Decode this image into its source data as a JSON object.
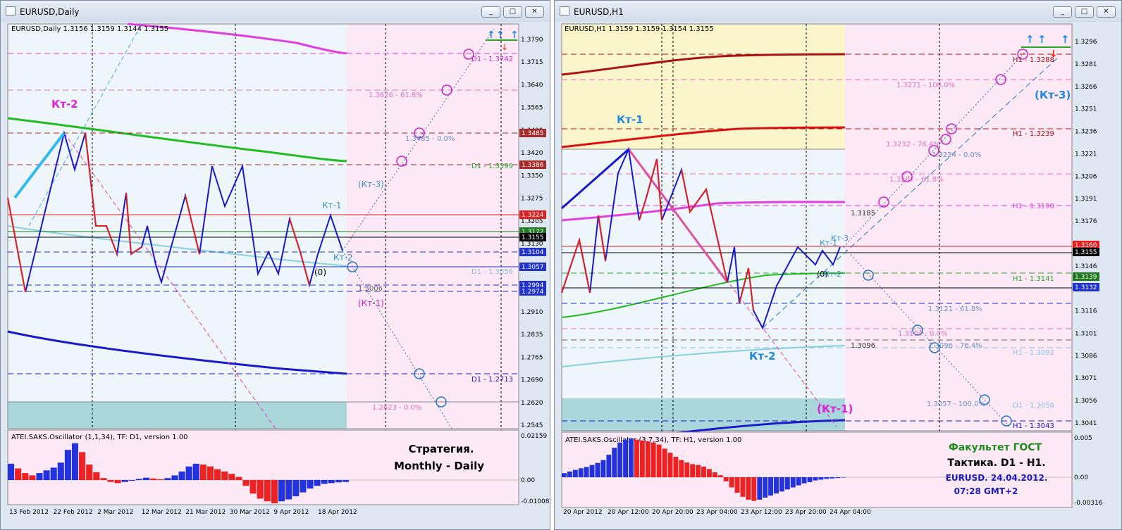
{
  "left": {
    "window_title": "EURUSD,Daily",
    "chart_header": "EURUSD,Daily  1.3156 1.3159 1.3144 1.3155",
    "price_axis": [
      "1.3790",
      "1.3715",
      "1.3640",
      "1.3565",
      "1.3490",
      "1.3420",
      "1.3350",
      "1.3275",
      "1.3205",
      "1.3130",
      "1.3055",
      "1.2985",
      "1.2910",
      "1.2835",
      "1.2765",
      "1.2690",
      "1.2620",
      "1.2545"
    ],
    "price_tags": [
      {
        "label": "1.3485",
        "color": "#a52a2a"
      },
      {
        "label": "1.3386",
        "color": "#a52a2a"
      },
      {
        "label": "1.3224",
        "color": "#e02020"
      },
      {
        "label": "1.3172",
        "color": "#1f7a1f"
      },
      {
        "label": "1.3155",
        "color": "#000000"
      },
      {
        "label": "1.3104",
        "color": "#2233cc"
      },
      {
        "label": "1.3057",
        "color": "#2233cc"
      },
      {
        "label": "1.2994",
        "color": "#2233cc"
      },
      {
        "label": "1.2974",
        "color": "#2233cc"
      }
    ],
    "date_axis": [
      "13 Feb 2012",
      "22 Feb 2012",
      "2 Mar 2012",
      "12 Mar 2012",
      "21 Mar 2012",
      "30 Mar 2012",
      "9 Apr 2012",
      "18 Apr 2012"
    ],
    "labels": {
      "kt2": "Кт-2",
      "kt1": "Кт-1",
      "kt2_small": "Кт-2",
      "zero": "(0)",
      "kt3_paren": "(Кт-3)",
      "kt1_paren": "(Кт-1)",
      "d1_13742": "D1 - 1.3742",
      "fib_618": "1.3626 - 61.8%",
      "fib_00": "1.3485 - 0.0%",
      "d1_13399": "D1 - 1.3399",
      "d1_13056": "D1 - 1.3056",
      "val_13006": "1.3006",
      "d1_12713": "D1 - 1.2713",
      "fib_2623": "1.2623 - 0.0%"
    },
    "oscillator": {
      "header": "ATEI.SAKS.Oscillator (1,1,34), TF: D1,  version 1.00",
      "axis": [
        "0.02159",
        "0.00",
        "-0.01008"
      ],
      "bars": [
        0.42,
        0.3,
        0.18,
        0.12,
        0.18,
        0.25,
        0.32,
        0.45,
        0.78,
        0.95,
        0.72,
        0.4,
        0.2,
        0.05,
        -0.05,
        -0.08,
        -0.05,
        -0.02,
        0.03,
        0.06,
        0.04,
        0.02,
        0.05,
        0.12,
        0.22,
        0.35,
        0.42,
        0.4,
        0.35,
        0.28,
        0.22,
        0.16,
        0.08,
        -0.15,
        -0.35,
        -0.48,
        -0.55,
        -0.6,
        -0.55,
        -0.5,
        -0.42,
        -0.32,
        -0.22,
        -0.15,
        -0.1,
        -0.08,
        -0.06,
        -0.05
      ],
      "note_line1": "Стратегия.",
      "note_line2": "Monthly - Daily"
    }
  },
  "right": {
    "window_title": "EURUSD,H1",
    "chart_header": "EURUSD,H1  1.3159 1.3159 1.3154 1.3155",
    "price_axis": [
      "1.3296",
      "1.3281",
      "1.3266",
      "1.3251",
      "1.3236",
      "1.3221",
      "1.3206",
      "1.3191",
      "1.3176",
      "1.3161",
      "1.3146",
      "1.3131",
      "1.3116",
      "1.3101",
      "1.3086",
      "1.3071",
      "1.3056",
      "1.3041"
    ],
    "price_tags": [
      {
        "label": "1.3160",
        "color": "#e02020"
      },
      {
        "label": "1.3155",
        "color": "#000000"
      },
      {
        "label": "1.3139",
        "color": "#1f7a1f"
      },
      {
        "label": "1.3132",
        "color": "#2233cc"
      }
    ],
    "date_axis": [
      "20 Apr 2012",
      "20 Apr 12:00",
      "20 Apr 20:00",
      "23 Apr 04:00",
      "23 Apr 12:00",
      "23 Apr 20:00",
      "24 Apr 04:00"
    ],
    "labels": {
      "kt1": "Кт-1",
      "kt2": "Кт-2",
      "kt3_paren": "(Кт-3)",
      "kt1_paren": "(Кт-1)",
      "kt3_small": "Кт-3",
      "kt1_small": "Кт-1",
      "kt2_small": "Кт-2",
      "zero": "(0)",
      "h1_13288": "H1 - 1.3288",
      "fib_1000": "1.3271 - 100.0%",
      "h1_13239": "H1 - 1.3239",
      "fib_764": "1.3232 - 76.4%",
      "fib_00": "1.3224 - 0.0%",
      "fib_618": "1.3207 - 61.8%",
      "h1_13190": "H1 - 1.3190",
      "val_13185": "1.3185",
      "h1_13141": "H1 - 1.3141",
      "fib_3121": "1.3121 - 61.8%",
      "fib_3104": "1.3104 - 0.0%",
      "val_13096": "1.3096",
      "fib_3096": "1.3096 - 76.4%",
      "h1_13092": "H1 - 1.3092",
      "fib_3057": "1.3057 - 100.0%",
      "d1_13056": "D1 - 1.3056",
      "h1_13043": "H1 - 1.3043"
    },
    "oscillator": {
      "header": "ATEI.SAKS.Oscillator (3,7,34), TF: H1,  version 1.00",
      "axis": [
        "0.005",
        "0.00",
        "-0.00316"
      ],
      "bars": [
        0.1,
        0.14,
        0.18,
        0.22,
        0.25,
        0.3,
        0.35,
        0.42,
        0.55,
        0.72,
        0.85,
        0.92,
        0.95,
        0.92,
        0.9,
        0.88,
        0.85,
        0.8,
        0.7,
        0.6,
        0.5,
        0.42,
        0.36,
        0.32,
        0.3,
        0.26,
        0.2,
        0.12,
        0.05,
        -0.1,
        -0.25,
        -0.38,
        -0.48,
        -0.55,
        -0.58,
        -0.55,
        -0.5,
        -0.45,
        -0.4,
        -0.35,
        -0.3,
        -0.25,
        -0.2,
        -0.15,
        -0.12,
        -0.08,
        -0.06,
        -0.04,
        -0.03,
        -0.02,
        -0.01
      ],
      "note_line1": "Факультет ГОСТ",
      "note_line2": "Тактика. D1 - H1.",
      "note_line3": "EURUSD. 24.04.2012.",
      "note_line4": "07:28  GMT+2"
    }
  },
  "window_buttons": {
    "minimize": "_",
    "maximize": "□",
    "close": "✕"
  }
}
